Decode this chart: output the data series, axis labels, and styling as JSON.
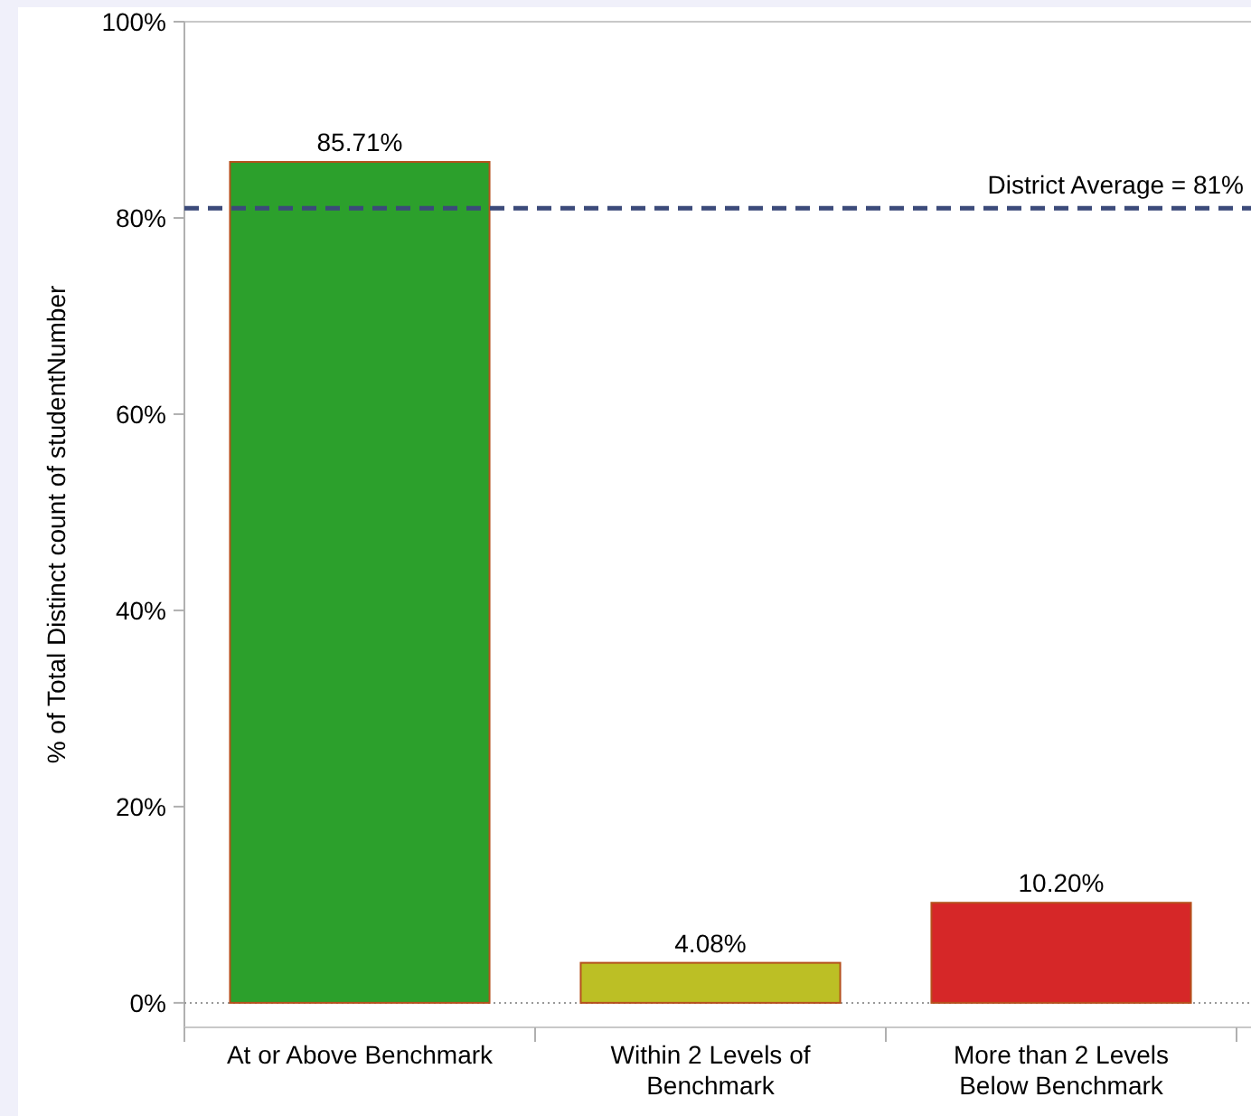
{
  "chart_data": {
    "type": "bar",
    "ylabel": "% of Total Distinct count of studentNumber",
    "categories": [
      "At or Above Benchmark",
      "Within 2 Levels of Benchmark",
      "More than 2 Levels Below Benchmark"
    ],
    "values": [
      85.71,
      4.08,
      10.2
    ],
    "colors": [
      "#2ca02c",
      "#bcbf25",
      "#d62728"
    ],
    "value_labels": [
      "85.71%",
      "4.08%",
      "10.20%"
    ],
    "ylim": [
      -2.5,
      100
    ],
    "yticks": [
      {
        "value": 0,
        "label": "0%"
      },
      {
        "value": 20,
        "label": "20%"
      },
      {
        "value": 40,
        "label": "40%"
      },
      {
        "value": 60,
        "label": "60%"
      },
      {
        "value": 80,
        "label": "80%"
      },
      {
        "value": 100,
        "label": "100%"
      }
    ],
    "ref_lines": [
      {
        "axis": "y",
        "value": 81,
        "label": "District Average = 81%",
        "color": "#3b4a7a",
        "line_style": "dashed"
      }
    ]
  }
}
